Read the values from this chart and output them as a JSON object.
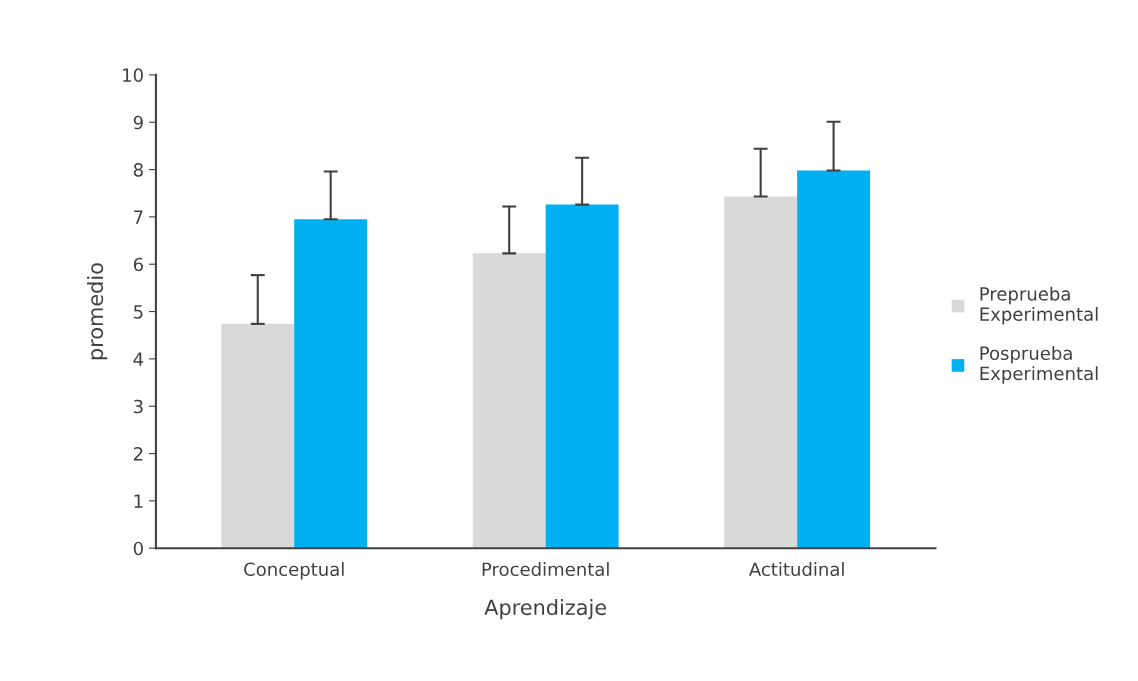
{
  "chart_data": {
    "type": "bar",
    "xlabel": "Aprendizaje",
    "ylabel": "promedio",
    "categories": [
      "Conceptual",
      "Procedimental",
      "Actitudinal"
    ],
    "series": [
      {
        "name": "Preprueba\nExperimental",
        "color": "#d9d9d9",
        "values": [
          4.74,
          6.23,
          7.43
        ],
        "errors": [
          [
            4.74,
            5.77
          ],
          [
            6.23,
            7.22
          ],
          [
            7.43,
            8.44
          ]
        ]
      },
      {
        "name": "Posprueba\nExperimental",
        "color": "#00b0f0",
        "values": [
          6.95,
          7.26,
          7.98
        ],
        "errors": [
          [
            6.95,
            7.96
          ],
          [
            7.26,
            8.25
          ],
          [
            7.98,
            9.01
          ]
        ]
      }
    ],
    "ylim": [
      0,
      10
    ],
    "yticks": [
      0,
      1,
      2,
      3,
      4,
      5,
      6,
      7,
      8,
      9,
      10
    ],
    "grid": false,
    "legend": "right"
  }
}
